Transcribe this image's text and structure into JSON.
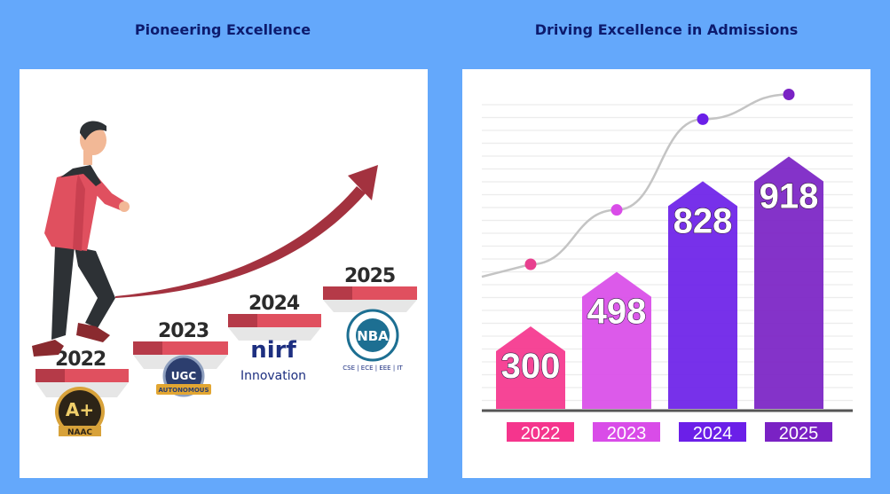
{
  "left": {
    "title": "Pioneering Excellence",
    "steps": [
      {
        "year": "2022",
        "badge": "naac",
        "badge_text": "A+",
        "badge_sub": "NAAC"
      },
      {
        "year": "2023",
        "badge": "ugc",
        "badge_text": "UGC",
        "badge_sub": "AUTONOMOUS"
      },
      {
        "year": "2024",
        "badge": "nirf",
        "badge_text": "nirf",
        "badge_sub": "Innovation"
      },
      {
        "year": "2025",
        "badge": "nba",
        "badge_text": "NBA",
        "badge_sub": "CSE | ECE | EEE | IT"
      }
    ],
    "colors": {
      "step": "#e0505f",
      "step_dark": "#b53a48",
      "arrow": "#a3323f"
    }
  },
  "right": {
    "title": "Driving Excellence in Admissions"
  },
  "chart_data": {
    "type": "bar",
    "title": "Driving Excellence in Admissions",
    "categories": [
      "2022",
      "2023",
      "2024",
      "2025"
    ],
    "values": [
      300,
      498,
      828,
      918
    ],
    "xlabel": "",
    "ylabel": "",
    "ylim": [
      0,
      1000
    ],
    "grid": true,
    "legend": "none",
    "trend_line": true,
    "colors": [
      "#f5358d",
      "#d94ce8",
      "#6b1fe8",
      "#7a22c4"
    ]
  }
}
